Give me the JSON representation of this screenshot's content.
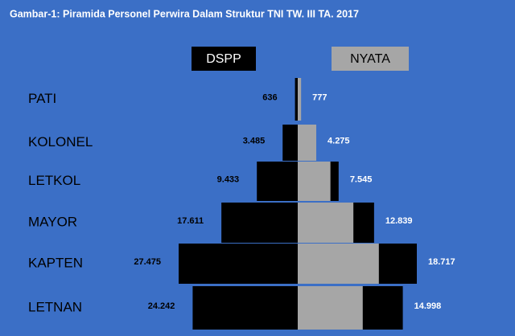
{
  "chart_data": {
    "type": "pyramid",
    "title": "Gambar-1: Piramida Personel Perwira Dalam Struktur TNI TW. III TA. 2017",
    "categories": [
      "PATI",
      "KOLONEL",
      "LETKOL",
      "MAYOR",
      "KAPTEN",
      "LETNAN"
    ],
    "series": [
      {
        "name": "DSPP",
        "color": "#000000",
        "values": [
          636,
          3485,
          9433,
          17611,
          27475,
          24242
        ],
        "value_labels": [
          "636",
          "3.485",
          "9.433",
          "17.611",
          "27.475",
          "24.242"
        ]
      },
      {
        "name": "NYATA",
        "color": "#a6a6a6",
        "values": [
          777,
          4275,
          7545,
          12839,
          18717,
          14998
        ],
        "value_labels": [
          "777",
          "4.275",
          "7.545",
          "12.839",
          "18.717",
          "14.998"
        ]
      }
    ]
  }
}
